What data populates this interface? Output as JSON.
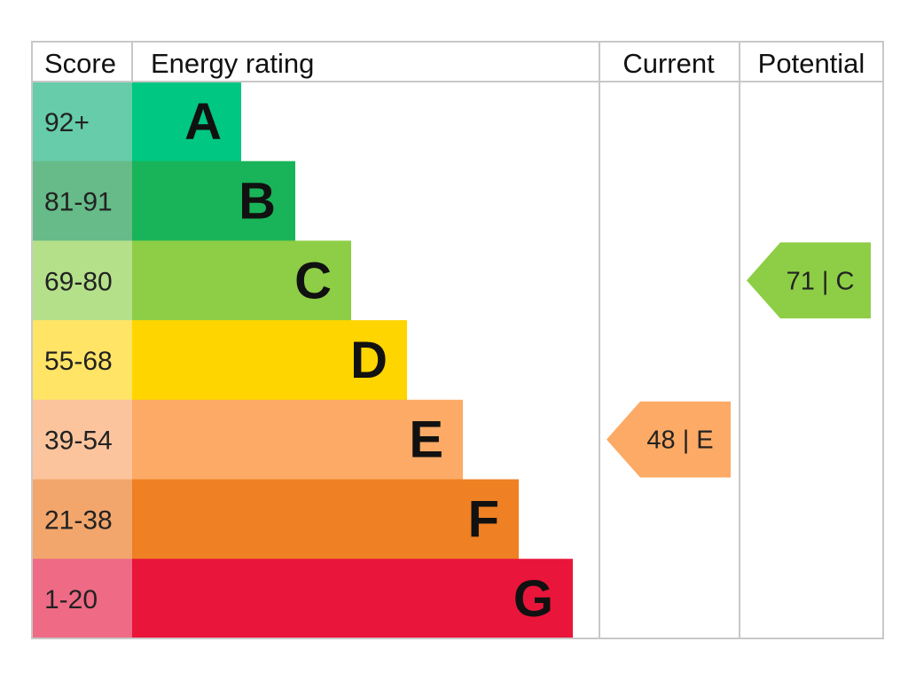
{
  "headers": {
    "score": "Score",
    "energy_rating": "Energy rating",
    "current": "Current",
    "potential": "Potential"
  },
  "chart_data": {
    "type": "bar",
    "title": "",
    "categories": [
      "A",
      "B",
      "C",
      "D",
      "E",
      "F",
      "G"
    ],
    "score_ranges": [
      "92+",
      "81-91",
      "69-80",
      "55-68",
      "39-54",
      "21-38",
      "1-20"
    ],
    "bar_colors": [
      "#00c781",
      "#19b459",
      "#8dce46",
      "#ffd500",
      "#fcaa65",
      "#ef8023",
      "#e9153b"
    ],
    "score_cell_colors": [
      "#66ccaa",
      "#66bb88",
      "#b4e08a",
      "#ffe466",
      "#fcc49d",
      "#f2a66c",
      "#ee6a85"
    ],
    "current": {
      "value": 48,
      "band": "E",
      "label": "48 | E",
      "color": "#fcaa65"
    },
    "potential": {
      "value": 71,
      "band": "C",
      "label": "71 | C",
      "color": "#8dce46"
    }
  }
}
